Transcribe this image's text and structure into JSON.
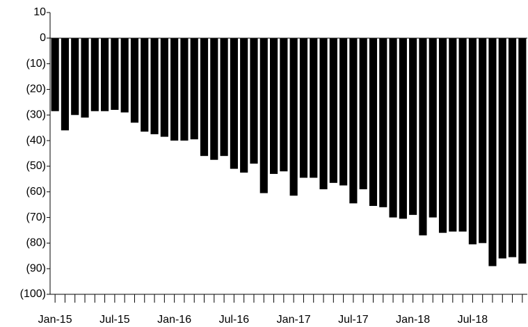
{
  "chart_data": {
    "type": "bar",
    "categories": [
      "Jan-15",
      null,
      null,
      null,
      null,
      null,
      "Jul-15",
      null,
      null,
      null,
      null,
      null,
      "Jan-16",
      null,
      null,
      null,
      null,
      null,
      "Jul-16",
      null,
      null,
      null,
      null,
      null,
      "Jan-17",
      null,
      null,
      null,
      null,
      null,
      "Jul-17",
      null,
      null,
      null,
      null,
      null,
      "Jan-18",
      null,
      null,
      null,
      null,
      null,
      "Jul-18",
      null,
      null,
      null,
      null,
      null
    ],
    "values": [
      -28.5,
      -36,
      -30,
      -31,
      -28.5,
      -28.5,
      -28,
      -29,
      -33,
      -36.5,
      -37.5,
      -38.5,
      -40,
      -40,
      -39.5,
      -46,
      -47.5,
      -46,
      -51,
      -52.5,
      -49,
      -60.5,
      -53,
      -52,
      -61.5,
      -54.5,
      -54.5,
      -59,
      -56.5,
      -57.5,
      -64.5,
      -59,
      -65.5,
      -66,
      -70,
      -70.5,
      -69,
      -77,
      -70,
      -76,
      -75.5,
      -75.5,
      -80.5,
      -80,
      -89,
      -86,
      -85.5,
      -88
    ],
    "color": "#000000",
    "ylim": [
      -100,
      10
    ],
    "yticks": [
      10,
      0,
      {
        "value": -10,
        "label": "(10)"
      },
      {
        "value": -20,
        "label": "(20)"
      },
      {
        "value": -30,
        "label": "(30)"
      },
      {
        "value": -40,
        "label": "(40)"
      },
      {
        "value": -50,
        "label": "(50)"
      },
      {
        "value": -60,
        "label": "(60)"
      },
      {
        "value": -70,
        "label": "(70)"
      },
      {
        "value": -80,
        "label": "(80)"
      },
      {
        "value": -90,
        "label": "(90)"
      },
      {
        "value": -100,
        "label": "(100)"
      }
    ],
    "grid": false
  }
}
